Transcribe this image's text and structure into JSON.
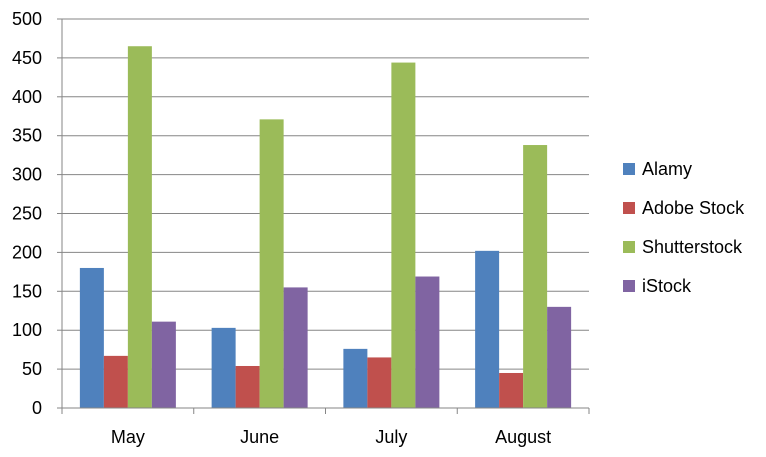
{
  "chart_data": {
    "type": "bar",
    "title": "",
    "xlabel": "",
    "ylabel": "",
    "categories": [
      "May",
      "June",
      "July",
      "August"
    ],
    "ylim": [
      0,
      500
    ],
    "yticks": [
      0,
      50,
      100,
      150,
      200,
      250,
      300,
      350,
      400,
      450,
      500
    ],
    "grid": true,
    "legend_position": "right",
    "series": [
      {
        "name": "Alamy",
        "color": "#4F81BD",
        "values": [
          180,
          103,
          76,
          202
        ]
      },
      {
        "name": "Adobe Stock",
        "color": "#C0504D",
        "values": [
          67,
          54,
          65,
          45
        ]
      },
      {
        "name": "Shutterstock",
        "color": "#9BBB59",
        "values": [
          465,
          371,
          444,
          338
        ]
      },
      {
        "name": "iStock",
        "color": "#8064A2",
        "values": [
          111,
          155,
          169,
          130
        ]
      }
    ]
  }
}
